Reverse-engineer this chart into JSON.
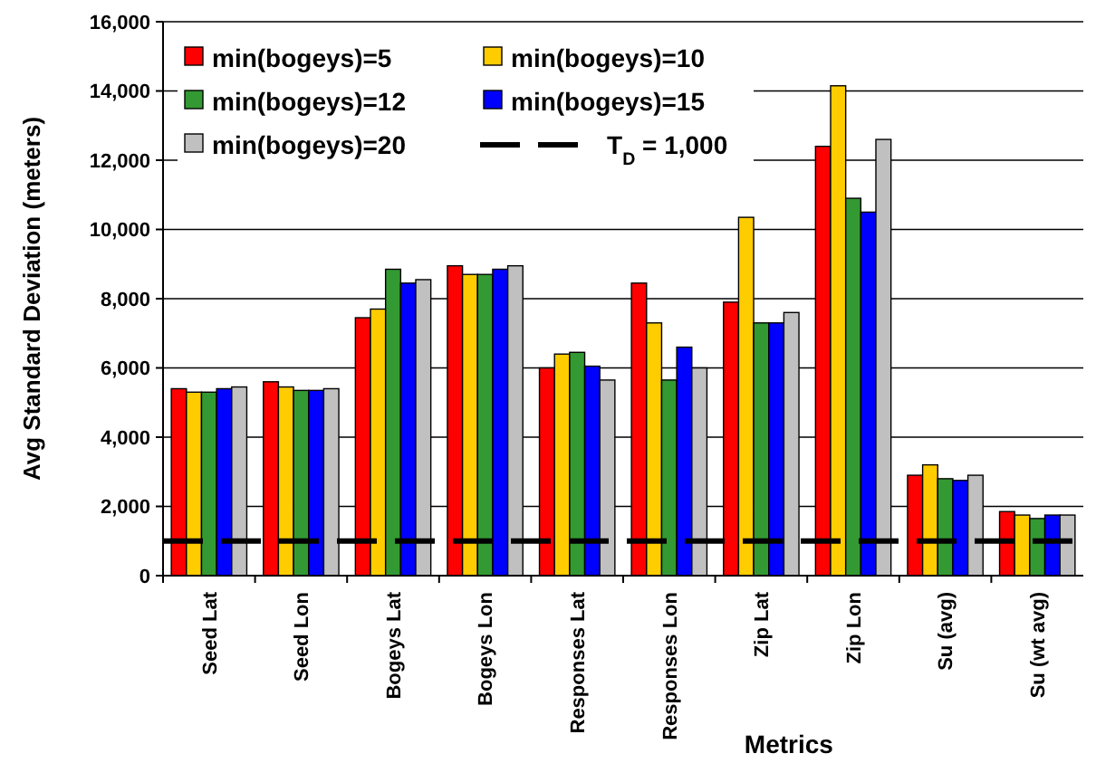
{
  "chart_data": {
    "type": "bar",
    "xlabel": "Metrics",
    "ylabel": "Avg Standard Deviation (meters)",
    "categories": [
      "Seed Lat",
      "Seed Lon",
      "Bogeys Lat",
      "Bogeys Lon",
      "Responses Lat",
      "Responses Lon",
      "Zip Lat",
      "Zip Lon",
      "Su (avg)",
      "Su (wt avg)"
    ],
    "series": [
      {
        "name": "min(bogeys)=5",
        "color": "#ff0000",
        "values": [
          5400,
          5600,
          7450,
          8950,
          6000,
          8450,
          7900,
          12400,
          2900,
          1850
        ]
      },
      {
        "name": "min(bogeys)=10",
        "color": "#ffcc00",
        "values": [
          5300,
          5450,
          7700,
          8700,
          6400,
          7300,
          10350,
          14150,
          3200,
          1750
        ]
      },
      {
        "name": "min(bogeys)=12",
        "color": "#339933",
        "values": [
          5300,
          5350,
          8850,
          8700,
          6450,
          5650,
          7300,
          10900,
          2800,
          1650
        ]
      },
      {
        "name": "min(bogeys)=15",
        "color": "#0000ff",
        "values": [
          5400,
          5350,
          8450,
          8850,
          6050,
          6600,
          7300,
          10500,
          2750,
          1750
        ]
      },
      {
        "name": "min(bogeys)=20",
        "color": "#c0c0c0",
        "values": [
          5450,
          5400,
          8550,
          8950,
          5650,
          6000,
          7600,
          12600,
          2900,
          1750
        ]
      }
    ],
    "ref_lines": [
      {
        "axis": "y",
        "value": 1000,
        "label": "T$_{D}$ = 1,000",
        "color": "#000000",
        "line_style": "dashed"
      }
    ],
    "ylim": [
      0,
      16000
    ],
    "yticks": [
      {
        "value": 0,
        "label": "0"
      },
      {
        "value": 2000,
        "label": "2,000"
      },
      {
        "value": 4000,
        "label": "4,000"
      },
      {
        "value": 6000,
        "label": "6,000"
      },
      {
        "value": 8000,
        "label": "8,000"
      },
      {
        "value": 10000,
        "label": "10,000"
      },
      {
        "value": 12000,
        "label": "12,000"
      },
      {
        "value": 14000,
        "label": "14,000"
      },
      {
        "value": 16000,
        "label": "16,000"
      }
    ],
    "grid": "y",
    "legend": "top left"
  }
}
